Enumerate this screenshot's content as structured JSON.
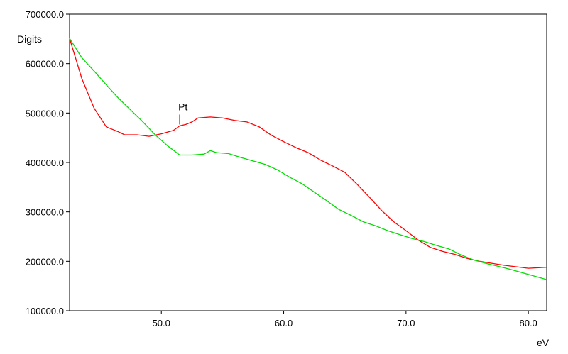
{
  "chart_data": {
    "type": "line",
    "xlabel": "eV",
    "ylabel": "Digits",
    "xlim": [
      42.5,
      81.5
    ],
    "ylim": [
      100000,
      700000
    ],
    "x_ticks": [
      50,
      60,
      70,
      80
    ],
    "x_tick_labels": [
      "50.0",
      "60.0",
      "70.0",
      "80.0"
    ],
    "y_ticks": [
      100000,
      200000,
      300000,
      400000,
      500000,
      600000,
      700000
    ],
    "y_tick_labels": [
      "100000.0",
      "200000.0",
      "300000.0",
      "400000.0",
      "500000.0",
      "600000.0",
      "700000.0"
    ],
    "grid": false,
    "series": [
      {
        "color": "#ff0000",
        "x": [
          42.5,
          43.5,
          44.5,
          45.5,
          46.5,
          47.0,
          48.0,
          49.0,
          50.0,
          51.0,
          51.5,
          52.0,
          52.5,
          53.0,
          54.0,
          55.0,
          56.0,
          57.0,
          58.0,
          59.0,
          60.0,
          61.0,
          62.0,
          63.0,
          64.0,
          65.0,
          66.0,
          67.0,
          68.0,
          69.0,
          70.0,
          71.0,
          72.0,
          73.0,
          74.0,
          75.0,
          76.0,
          77.0,
          78.0,
          79.0,
          80.0,
          81.5
        ],
        "y": [
          651000,
          570000,
          510000,
          472000,
          462000,
          456000,
          456000,
          453000,
          458000,
          465000,
          474000,
          477000,
          482000,
          490000,
          492000,
          490000,
          485000,
          482000,
          472000,
          455000,
          442000,
          430000,
          420000,
          405000,
          393000,
          380000,
          356000,
          330000,
          303000,
          280000,
          262000,
          243000,
          228000,
          220000,
          214000,
          206000,
          200000,
          196000,
          192000,
          189000,
          186000,
          188000
        ]
      },
      {
        "color": "#00dd00",
        "x": [
          42.5,
          43.5,
          44.5,
          45.5,
          46.5,
          47.5,
          48.5,
          49.5,
          50.5,
          51.5,
          52.5,
          53.5,
          54.0,
          54.5,
          55.5,
          56.5,
          57.5,
          58.5,
          59.5,
          60.5,
          61.5,
          62.5,
          63.5,
          64.5,
          65.5,
          66.5,
          67.5,
          68.5,
          69.5,
          70.5,
          71.5,
          72.5,
          73.5,
          74.5,
          75.5,
          76.5,
          77.5,
          78.5,
          79.5,
          80.5,
          81.5
        ],
        "y": [
          651000,
          612000,
          585000,
          557000,
          530000,
          506000,
          482000,
          456000,
          434000,
          415000,
          415000,
          417000,
          424000,
          420000,
          418000,
          410000,
          403000,
          396000,
          385000,
          370000,
          357000,
          340000,
          323000,
          305000,
          293000,
          280000,
          272000,
          262000,
          254000,
          246000,
          240000,
          232000,
          225000,
          213000,
          203000,
          196000,
          190000,
          184000,
          177000,
          170000,
          163000
        ]
      }
    ],
    "annotations": [
      {
        "text": "Pt",
        "x": 51.5,
        "y": 474000
      }
    ]
  }
}
